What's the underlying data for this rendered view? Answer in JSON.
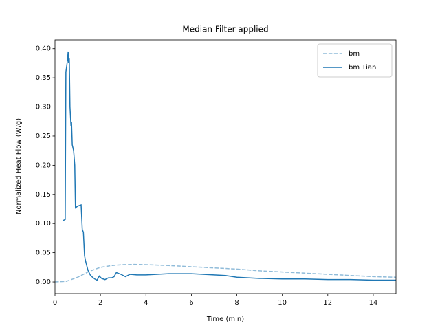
{
  "chart_data": {
    "type": "line",
    "title": "Median Filter applied",
    "xlabel": "Time (min)",
    "ylabel": "Normalized Heat Flow (W/g)",
    "xlim": [
      0,
      15
    ],
    "xticks": [
      0,
      2,
      4,
      6,
      8,
      10,
      12,
      14
    ],
    "ylim": [
      -0.02,
      0.415
    ],
    "yticks": [
      {
        "value": 0,
        "label": "0.00"
      },
      0.05,
      {
        "value": 0.1,
        "label": "0.10"
      },
      0.15,
      {
        "value": 0.2,
        "label": "0.20"
      },
      0.25,
      {
        "value": 0.3,
        "label": "0.30"
      },
      0.35,
      {
        "value": 0.4,
        "label": "0.40"
      }
    ],
    "grid": false,
    "legend": "upper right",
    "series": [
      {
        "name": "bm",
        "color": "#8fbbd9",
        "linestyle": "dashed",
        "x": [
          0,
          0.5,
          1,
          1.5,
          2,
          2.5,
          3,
          3.5,
          4,
          5,
          6,
          7,
          8,
          9,
          10,
          11,
          12,
          13,
          14,
          15
        ],
        "values": [
          0,
          0.001,
          0.008,
          0.018,
          0.025,
          0.028,
          0.0295,
          0.03,
          0.0295,
          0.028,
          0.026,
          0.024,
          0.022,
          0.019,
          0.017,
          0.015,
          0.013,
          0.011,
          0.009,
          0.008
        ]
      },
      {
        "name": "bm Tian",
        "color": "#1f77b4",
        "linestyle": "solid",
        "x": [
          0.35,
          0.45,
          0.48,
          0.55,
          0.58,
          0.6,
          0.63,
          0.66,
          0.7,
          0.73,
          0.76,
          0.82,
          0.87,
          0.9,
          1.0,
          1.15,
          1.2,
          1.25,
          1.3,
          1.35,
          1.45,
          1.55,
          1.65,
          1.75,
          1.85,
          1.95,
          2.05,
          2.2,
          2.35,
          2.5,
          2.6,
          2.7,
          2.9,
          3.1,
          3.3,
          3.6,
          4.0,
          4.5,
          5.0,
          6.0,
          6.5,
          7.0,
          7.5,
          8,
          9,
          10,
          11,
          12,
          13,
          14,
          15
        ],
        "values": [
          0.105,
          0.107,
          0.36,
          0.38,
          0.395,
          0.375,
          0.383,
          0.3,
          0.27,
          0.272,
          0.235,
          0.225,
          0.2,
          0.127,
          0.13,
          0.132,
          0.09,
          0.085,
          0.045,
          0.035,
          0.02,
          0.012,
          0.008,
          0.005,
          0.003,
          0.01,
          0.006,
          0.004,
          0.007,
          0.007,
          0.009,
          0.016,
          0.013,
          0.009,
          0.013,
          0.012,
          0.012,
          0.013,
          0.014,
          0.014,
          0.013,
          0.012,
          0.011,
          0.008,
          0.006,
          0.005,
          0.005,
          0.004,
          0.004,
          0.003,
          0.003
        ]
      }
    ]
  }
}
